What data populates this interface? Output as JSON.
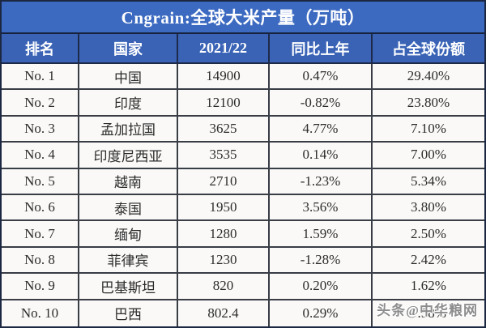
{
  "title": "Cngrain:全球大米产量（万吨）",
  "watermark": "头条@中华粮网",
  "colors": {
    "title_background": "#3c6ac1",
    "header_background": "#3a63b6",
    "outer_border": "#1c2742",
    "grid_line": "#383d46",
    "body_background": "#faf9f7",
    "body_text": "#2c2c2c",
    "header_text": "#ffffff",
    "watermark_text": "#8d8d8d"
  },
  "table": {
    "columns": [
      "排名",
      "国家",
      "2021/22",
      "同比上年",
      "占全球份额"
    ],
    "rows": [
      {
        "rank": "No. 1",
        "country": "中国",
        "production": "14900",
        "yoy": "0.47%",
        "share": "29.40%"
      },
      {
        "rank": "No. 2",
        "country": "印度",
        "production": "12100",
        "yoy": "-0.82%",
        "share": "23.80%"
      },
      {
        "rank": "No. 3",
        "country": "孟加拉国",
        "production": "3625",
        "yoy": "4.77%",
        "share": "7.10%"
      },
      {
        "rank": "No. 4",
        "country": "印度尼西亚",
        "production": "3535",
        "yoy": "0.14%",
        "share": "7.00%"
      },
      {
        "rank": "No. 5",
        "country": "越南",
        "production": "2710",
        "yoy": "-1.23%",
        "share": "5.34%"
      },
      {
        "rank": "No. 6",
        "country": "泰国",
        "production": "1950",
        "yoy": "3.56%",
        "share": "3.80%"
      },
      {
        "rank": "No. 7",
        "country": "缅甸",
        "production": "1280",
        "yoy": "1.59%",
        "share": "2.50%"
      },
      {
        "rank": "No. 8",
        "country": "菲律宾",
        "production": "1230",
        "yoy": "-1.28%",
        "share": "2.42%"
      },
      {
        "rank": "No. 9",
        "country": "巴基斯坦",
        "production": "820",
        "yoy": "0.20%",
        "share": "1.62%"
      },
      {
        "rank": "No. 10",
        "country": "巴西",
        "production": "802.4",
        "yoy": "0.29%",
        "share": "1.58%"
      }
    ]
  },
  "chart_data": {
    "type": "table",
    "title": "Cngrain:全球大米产量（万吨）",
    "columns": [
      "排名",
      "国家",
      "2021/22",
      "同比上年",
      "占全球份额"
    ],
    "rows": [
      [
        "No. 1",
        "中国",
        14900,
        "0.47%",
        "29.40%"
      ],
      [
        "No. 2",
        "印度",
        12100,
        "-0.82%",
        "23.80%"
      ],
      [
        "No. 3",
        "孟加拉国",
        3625,
        "4.77%",
        "7.10%"
      ],
      [
        "No. 4",
        "印度尼西亚",
        3535,
        "0.14%",
        "7.00%"
      ],
      [
        "No. 5",
        "越南",
        2710,
        "-1.23%",
        "5.34%"
      ],
      [
        "No. 6",
        "泰国",
        1950,
        "3.56%",
        "3.80%"
      ],
      [
        "No. 7",
        "缅甸",
        1280,
        "1.59%",
        "2.50%"
      ],
      [
        "No. 8",
        "菲律宾",
        1230,
        "-1.28%",
        "2.42%"
      ],
      [
        "No. 9",
        "巴基斯坦",
        820,
        "0.20%",
        "1.62%"
      ],
      [
        "No. 10",
        "巴西",
        802.4,
        "0.29%",
        "1.58%"
      ]
    ]
  }
}
